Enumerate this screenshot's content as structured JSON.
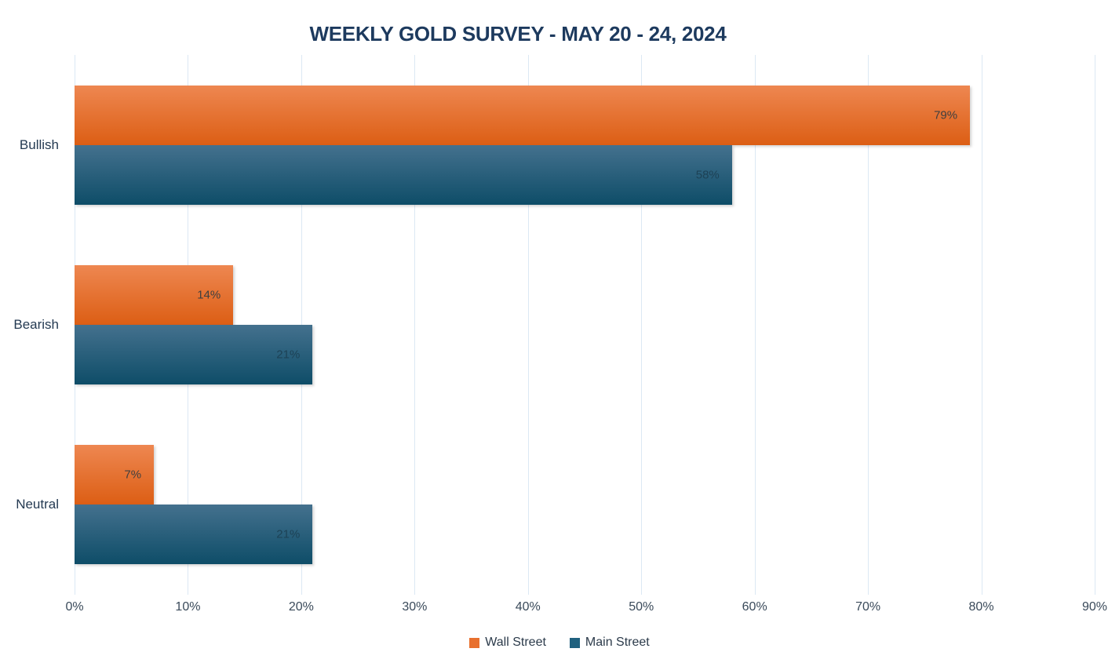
{
  "title": "WEEKLY GOLD SURVEY - MAY 20 - 24, 2024",
  "chart_data": {
    "type": "bar",
    "orientation": "horizontal",
    "title": "WEEKLY GOLD SURVEY - MAY 20 - 24, 2024",
    "categories": [
      "Bullish",
      "Bearish",
      "Neutral"
    ],
    "series": [
      {
        "name": "Wall Street",
        "values": [
          79,
          14,
          7
        ],
        "data_labels": [
          "79%",
          "14%",
          "7%"
        ],
        "color_top": "#EE8751",
        "color_bottom": "#DC5E14",
        "legend_color": "#E8702E",
        "label_color": "#3F3F3F"
      },
      {
        "name": "Main Street",
        "values": [
          58,
          21,
          21
        ],
        "data_labels": [
          "58%",
          "21%",
          "21%"
        ],
        "color_top": "#44718E",
        "color_bottom": "#0E4D68",
        "legend_color": "#20617F",
        "label_color": "#1D4256"
      }
    ],
    "xlabel": "",
    "ylabel": "",
    "xlim": [
      0,
      90
    ],
    "x_tick_labels": [
      "0%",
      "10%",
      "20%",
      "30%",
      "40%",
      "50%",
      "60%",
      "70%",
      "80%",
      "90%"
    ],
    "x_tick_values": [
      0,
      10,
      20,
      30,
      40,
      50,
      60,
      70,
      80,
      90
    ],
    "grid": "vertical",
    "legend_position": "bottom"
  },
  "colors": {
    "title_text": "#1D3A5E",
    "category_text": "#243A52",
    "axis_text": "#3A4A5A",
    "legend_text": "#2B3A4A",
    "gridline": "#DBE8F4",
    "background": "#FFFFFF"
  }
}
